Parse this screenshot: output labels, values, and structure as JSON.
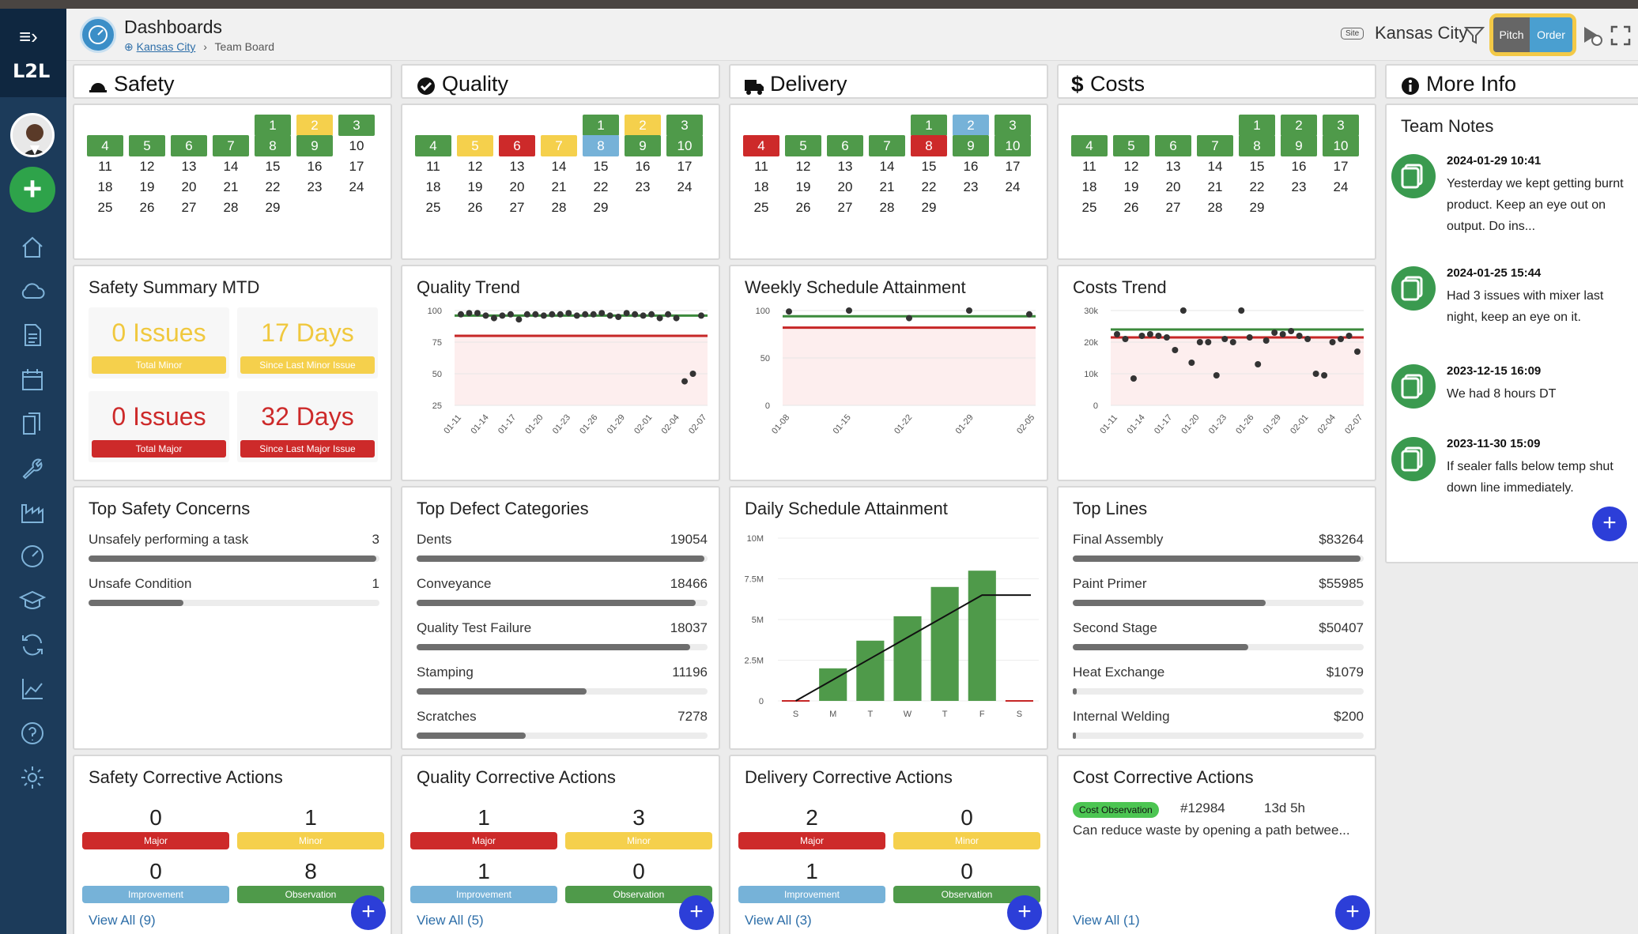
{
  "app": {
    "logo_text": "L2L",
    "title": "Dashboards",
    "breadcrumb_site": "Kansas City",
    "breadcrumb_sep": "›",
    "breadcrumb_page": "Team Board",
    "site_badge": "Site",
    "site_name": "Kansas City",
    "toggle_pitch": "Pitch",
    "toggle_order": "Order"
  },
  "headers": {
    "safety": "Safety",
    "quality": "Quality",
    "delivery": "Delivery",
    "costs": "Costs",
    "more_info": "More Info"
  },
  "calendars": {
    "safety": {
      "1": "g",
      "2": "y",
      "3": "g",
      "4": "g",
      "5": "g",
      "6": "g",
      "7": "g",
      "8": "g",
      "9": "g"
    },
    "quality": {
      "1": "g",
      "2": "y",
      "3": "g",
      "4": "g",
      "5": "y",
      "6": "r",
      "7": "y",
      "8": "b",
      "9": "g",
      "10": "g"
    },
    "delivery": {
      "1": "g",
      "2": "b",
      "3": "g",
      "4": "r",
      "5": "g",
      "6": "g",
      "7": "g",
      "8": "r",
      "9": "g",
      "10": "g"
    },
    "costs": {
      "1": "g",
      "2": "g",
      "3": "g",
      "4": "g",
      "5": "g",
      "6": "g",
      "7": "g",
      "8": "g",
      "9": "g",
      "10": "g"
    }
  },
  "safety_summary": {
    "title": "Safety Summary MTD",
    "minor_issues": "0 Issues",
    "minor_label": "Total Minor",
    "days_minor": "17 Days",
    "days_minor_label": "Since Last Minor Issue",
    "major_issues": "0 Issues",
    "major_label": "Total Major",
    "days_major": "32 Days",
    "days_major_label": "Since Last Major Issue"
  },
  "charts_titles": {
    "quality_trend": "Quality Trend",
    "weekly": "Weekly Schedule Attainment",
    "costs_trend": "Costs Trend",
    "daily": "Daily Schedule Attainment"
  },
  "chart_data": [
    {
      "type": "scatter",
      "title": "Quality Trend",
      "yticks": [
        "100",
        "75",
        "50",
        "25"
      ],
      "ylim": [
        25,
        100
      ],
      "target": 96,
      "limit": 80,
      "xticks": [
        "01-11",
        "01-14",
        "01-17",
        "01-20",
        "01-23",
        "01-26",
        "01-29",
        "02-01",
        "02-04",
        "02-07"
      ],
      "values": [
        97,
        98,
        98,
        96,
        94,
        96,
        97,
        93,
        97,
        97,
        96,
        97,
        97,
        98,
        96,
        97,
        97,
        98,
        96,
        95,
        98,
        97,
        96,
        97,
        94,
        97,
        94,
        44,
        50,
        96
      ]
    },
    {
      "type": "scatter",
      "title": "Weekly Schedule Attainment",
      "yticks": [
        "100",
        "50",
        "0"
      ],
      "ylim": [
        0,
        100
      ],
      "target": 94,
      "limit": 82,
      "xticks": [
        "01-08",
        "01-15",
        "01-22",
        "01-29",
        "02-05"
      ],
      "values": [
        99,
        100,
        92,
        100,
        96
      ]
    },
    {
      "type": "scatter",
      "title": "Costs Trend",
      "yticks": [
        "30k",
        "20k",
        "10k",
        "0"
      ],
      "ylim": [
        0,
        30000
      ],
      "target": 24000,
      "limit": 21500,
      "xticks": [
        "01-11",
        "01-14",
        "01-17",
        "01-20",
        "01-23",
        "01-26",
        "01-29",
        "02-01",
        "02-04",
        "02-07"
      ],
      "values": [
        22500,
        21000,
        8500,
        22000,
        22500,
        22000,
        21500,
        17500,
        30000,
        13500,
        20000,
        20000,
        9500,
        21000,
        20000,
        30000,
        21500,
        13000,
        20500,
        23000,
        22500,
        23500,
        22000,
        21000,
        10000,
        9500,
        20000,
        21000,
        22000,
        17000
      ]
    },
    {
      "type": "bar",
      "title": "Daily Schedule Attainment",
      "categories": [
        "S",
        "M",
        "T",
        "W",
        "T",
        "F",
        "S"
      ],
      "values": [
        0,
        2000000,
        3700000,
        5200000,
        7000000,
        8000000,
        0
      ],
      "line": [
        0,
        1300000,
        2600000,
        3900000,
        5200000,
        6500000,
        6500000
      ],
      "yticks": [
        "10M",
        "7.5M",
        "5M",
        "2.5M",
        "0"
      ],
      "ylim": [
        0,
        10000000
      ]
    }
  ],
  "safety_concerns": {
    "title": "Top Safety Concerns",
    "items": [
      {
        "label": "Unsafely performing a task",
        "value": "3",
        "pct": 1.0
      },
      {
        "label": "Unsafe Condition",
        "value": "1",
        "pct": 0.33
      }
    ]
  },
  "defects": {
    "title": "Top Defect Categories",
    "items": [
      {
        "label": "Dents",
        "value": "19054",
        "pct": 1.0
      },
      {
        "label": "Conveyance",
        "value": "18466",
        "pct": 0.97
      },
      {
        "label": "Quality Test Failure",
        "value": "18037",
        "pct": 0.95
      },
      {
        "label": "Stamping",
        "value": "11196",
        "pct": 0.59
      },
      {
        "label": "Scratches",
        "value": "7278",
        "pct": 0.38
      }
    ]
  },
  "top_lines": {
    "title": "Top Lines",
    "items": [
      {
        "label": "Final Assembly",
        "value": "$83264",
        "pct": 1.0
      },
      {
        "label": "Paint Primer",
        "value": "$55985",
        "pct": 0.67
      },
      {
        "label": "Second Stage",
        "value": "$50407",
        "pct": 0.61
      },
      {
        "label": "Heat Exchange",
        "value": "$1079",
        "pct": 0.013
      },
      {
        "label": "Internal Welding",
        "value": "$200",
        "pct": 0.003
      }
    ]
  },
  "corrective": {
    "safety": {
      "title": "Safety Corrective Actions",
      "major": "0",
      "minor": "1",
      "improvement": "0",
      "observation": "8",
      "view_all": "View All (9)"
    },
    "quality": {
      "title": "Quality Corrective Actions",
      "major": "1",
      "minor": "3",
      "improvement": "1",
      "observation": "0",
      "view_all": "View All (5)"
    },
    "delivery": {
      "title": "Delivery Corrective Actions",
      "major": "2",
      "minor": "0",
      "improvement": "1",
      "observation": "0",
      "view_all": "View All (3)"
    },
    "labels": {
      "major": "Major",
      "minor": "Minor",
      "improvement": "Improvement",
      "observation": "Observation"
    }
  },
  "cost_ca": {
    "title": "Cost Corrective Actions",
    "badge": "Cost Observation",
    "id": "#12984",
    "age": "13d 5h",
    "text": "Can reduce waste by opening a path betwee...",
    "view_all": "View All (1)"
  },
  "notes": {
    "title": "Team Notes",
    "items": [
      {
        "date": "2024-01-29 10:41",
        "text": "Yesterday we kept getting burnt product. Keep an eye out on output. Do ins..."
      },
      {
        "date": "2024-01-25 15:44",
        "text": "Had 3 issues with mixer last night, keep an eye on it."
      },
      {
        "date": "2023-12-15 16:09",
        "text": "We had 8 hours DT"
      },
      {
        "date": "2023-11-30 15:09",
        "text": "If sealer falls below temp shut down line immediately."
      }
    ]
  },
  "colors": {
    "green": "#4f9a4a",
    "yellow": "#f5d04c",
    "red": "#cd2a2a",
    "blue": "#76b2d8",
    "fab": "#2c3ed8"
  }
}
